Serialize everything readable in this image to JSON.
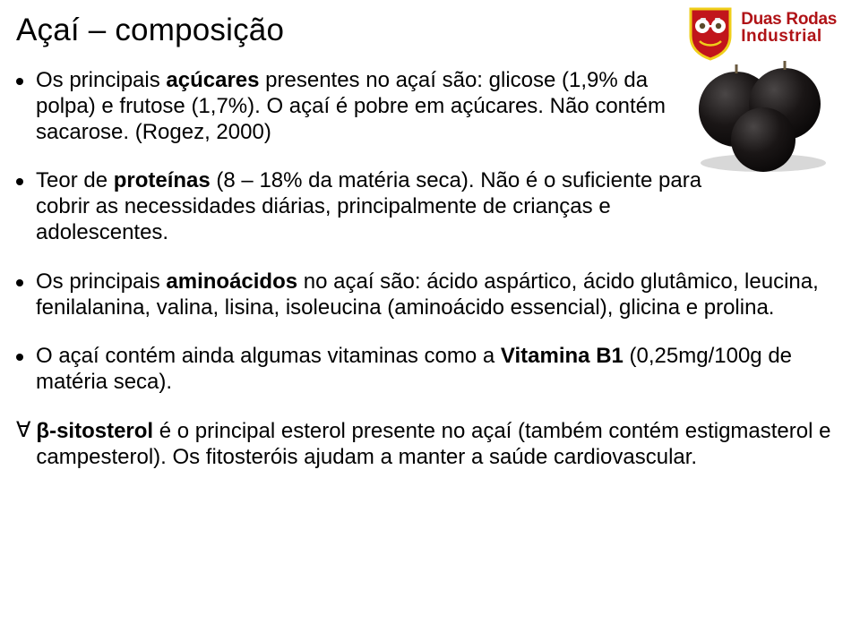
{
  "title": "Açaí – composição",
  "logo": {
    "brand_line1": "Duas Rodas",
    "brand_line2": "Industrial",
    "brand_color": "#b01317",
    "shield_border": "#efce1a",
    "shield_fill": "#c1151b"
  },
  "acai_illustration": {
    "berry_fill": "#1a1616",
    "berry_shadow": "#0a0808",
    "highlight": "#4a4646",
    "stem": "#6a5a40"
  },
  "bullets": [
    {
      "marker": "dot",
      "width": "narrow",
      "segments": [
        {
          "t": "Os principais "
        },
        {
          "t": "açúcares",
          "b": true
        },
        {
          "t": " presentes no açaí são: glicose (1,9% da polpa) e frutose (1,7%). O açaí é pobre em açúcares. Não contém sacarose. (Rogez, 2000)"
        }
      ]
    },
    {
      "marker": "dot",
      "width": "narrow",
      "segments": [
        {
          "t": "Teor de "
        },
        {
          "t": "proteínas",
          "b": true
        },
        {
          "t": " (8 – 18% da matéria seca). Não é o suficiente para cobrir as necessidades diárias, principalmente de crianças e adolescentes."
        }
      ]
    },
    {
      "marker": "dot",
      "width": "wide",
      "segments": [
        {
          "t": "Os principais "
        },
        {
          "t": "aminoácidos",
          "b": true
        },
        {
          "t": " no açaí são: ácido aspártico, ácido glutâmico, leucina, fenilalanina, valina, lisina, isoleucina (aminoácido essencial), glicina e prolina."
        }
      ]
    },
    {
      "marker": "dot",
      "width": "wide",
      "segments": [
        {
          "t": "O açaí contém ainda algumas vitaminas como a "
        },
        {
          "t": "Vitamina B1",
          "b": true
        },
        {
          "t": " (0,25mg/100g de matéria seca)."
        }
      ]
    },
    {
      "marker": "forall",
      "width": "wide",
      "segments": [
        {
          "t": "β-sitosterol",
          "b": true
        },
        {
          "t": " é o principal esterol presente no açaí (também contém estigmasterol e campesterol). Os fitosteróis ajudam a manter a saúde cardiovascular."
        }
      ]
    }
  ]
}
